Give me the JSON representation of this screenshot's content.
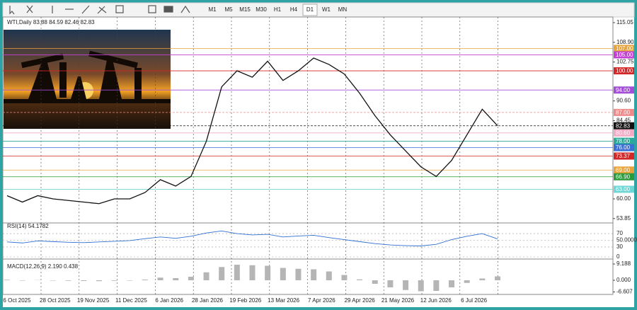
{
  "toolbar": {
    "timeframes": [
      "M1",
      "M5",
      "M15",
      "M30",
      "H1",
      "H4",
      "D1",
      "W1",
      "MN"
    ],
    "active": "D1"
  },
  "chart": {
    "header": "WTI,Daily  83.88 84.59 82.46 82.83",
    "price_ticks": [
      {
        "value": 115.05,
        "label": "115.05"
      },
      {
        "value": 108.9,
        "label": "108.90"
      },
      {
        "value": 102.75,
        "label": "102.75"
      },
      {
        "value": 90.6,
        "label": "90.60"
      },
      {
        "value": 84.45,
        "label": "84.45"
      },
      {
        "value": 60,
        "label": "60.00"
      },
      {
        "value": 53.85,
        "label": "53.85"
      }
    ],
    "levels": [
      {
        "value": 107,
        "label": "107.00",
        "color": "#e8a33a"
      },
      {
        "value": 105,
        "label": "105.00",
        "color": "#c43fd6"
      },
      {
        "value": 100,
        "label": "100.00",
        "color": "#d42626"
      },
      {
        "value": 94,
        "label": "94.00",
        "color": "#a04fd6"
      },
      {
        "value": 87,
        "label": "87.00",
        "color": "#f08a8a"
      },
      {
        "value": 82.83,
        "label": "82.83",
        "color": "#111111"
      },
      {
        "value": 80.6,
        "label": "80.60",
        "color": "#f4a9c4"
      },
      {
        "value": 78,
        "label": "78.00",
        "color": "#2aa89a"
      },
      {
        "value": 76,
        "label": "76.00",
        "color": "#3a6fd6"
      },
      {
        "value": 73.37,
        "label": "73.37",
        "color": "#d42626"
      },
      {
        "value": 69,
        "label": "69.00",
        "color": "#e8a33a"
      },
      {
        "value": 66.9,
        "label": "66.90",
        "color": "#2a9a3a"
      },
      {
        "value": 63,
        "label": "63.00",
        "color": "#6fd6d6"
      }
    ],
    "dates": [
      "6 Oct 2025",
      "28 Oct 2025",
      "19 Nov 2025",
      "11 Dec 2025",
      "6 Jan 2026",
      "28 Jan 2026",
      "19 Feb 2026",
      "13 Mar 2026",
      "7 Apr 2026",
      "29 Apr 2026",
      "21 May 2026",
      "12 Jun 2026",
      "6 Jul 2026"
    ],
    "close": [
      61,
      59,
      61,
      60,
      59.5,
      59,
      58.5,
      60,
      60,
      62,
      66,
      64,
      67,
      78,
      95,
      100,
      98,
      103,
      97,
      100,
      104,
      102,
      99,
      93,
      86,
      80,
      75,
      70,
      67,
      72,
      80,
      88,
      82.83
    ],
    "rsi": {
      "label": "RSI(14) 54.1782",
      "ticks": [
        {
          "value": 70,
          "label": "70"
        },
        {
          "value": 50,
          "label": "50.0000"
        },
        {
          "value": 30,
          "label": "30"
        },
        {
          "value": 0,
          "label": "0"
        }
      ],
      "values": [
        45,
        42,
        48,
        46,
        44,
        43,
        45,
        47,
        49,
        55,
        60,
        56,
        62,
        72,
        78,
        70,
        66,
        68,
        60,
        63,
        65,
        58,
        52,
        46,
        40,
        36,
        34,
        33,
        38,
        52,
        62,
        70,
        54.1782
      ]
    },
    "macd": {
      "label": "MACD(12,26,9) 2.190 0.438",
      "ticks": [
        {
          "value": 9.188,
          "label": "9.188"
        },
        {
          "value": 0,
          "label": "0.000"
        },
        {
          "value": -6.607,
          "label": "-6.607"
        }
      ],
      "values": [
        0.3,
        -0.2,
        0.1,
        0,
        -0.3,
        -0.4,
        -0.5,
        -0.3,
        0,
        0.4,
        1.5,
        1.2,
        2,
        4.5,
        7.5,
        8.8,
        8.5,
        8.2,
        7,
        6.5,
        6.2,
        5,
        3,
        0.5,
        -2,
        -4,
        -5.5,
        -6.2,
        -6,
        -4,
        -1.5,
        1,
        2.19
      ]
    }
  }
}
